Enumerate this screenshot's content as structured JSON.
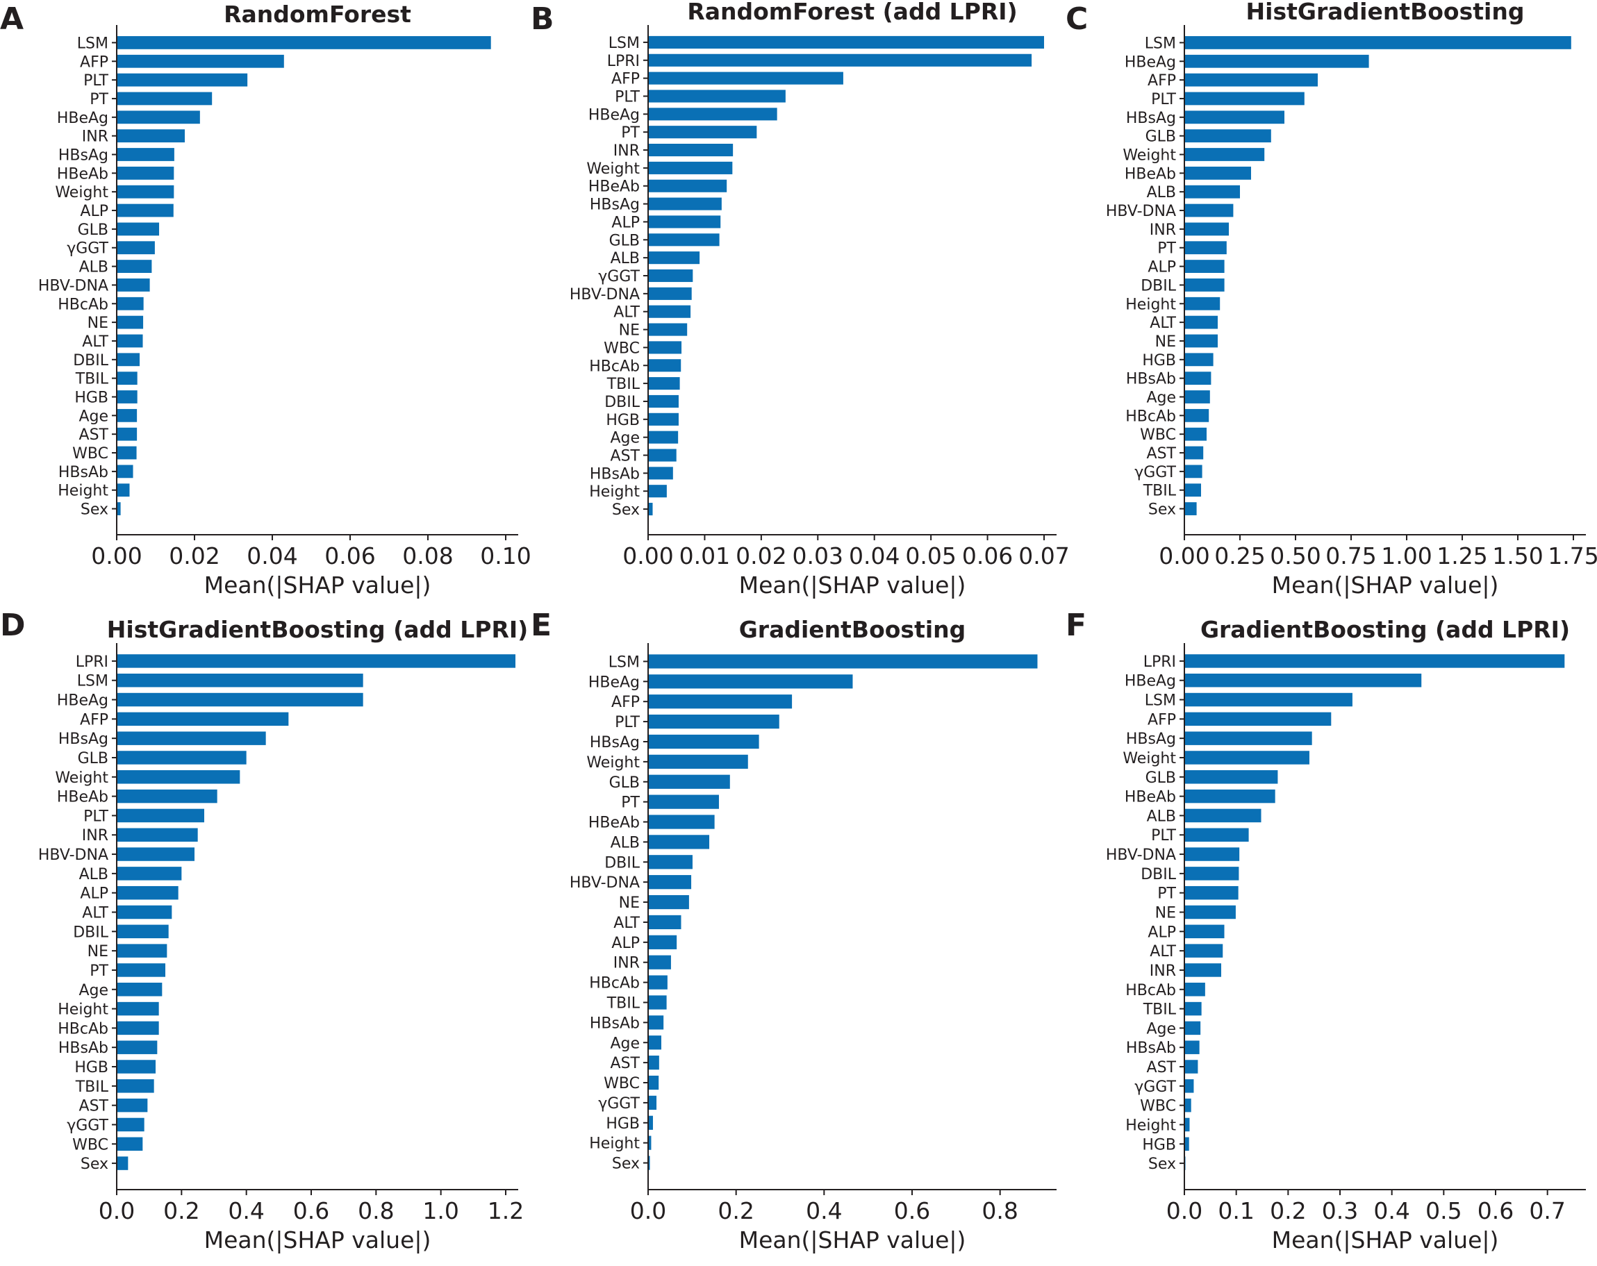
{
  "colors": {
    "bar": "#0a70b5",
    "axis": "#231f20"
  },
  "chart_data": [
    {
      "panel": "A",
      "type": "bar",
      "orientation": "horizontal",
      "title": "RandomForest",
      "xlabel": "Mean(|SHAP value|)",
      "xlim": [
        0,
        0.1
      ],
      "xticks": [
        "0.00",
        "0.02",
        "0.04",
        "0.06",
        "0.08",
        "0.10"
      ],
      "categories": [
        "LSM",
        "AFP",
        "PLT",
        "PT",
        "HBeAg",
        "INR",
        "HBsAg",
        "HBeAb",
        "Weight",
        "ALP",
        "GLB",
        "γGGT",
        "ALB",
        "HBV-DNA",
        "HBcAb",
        "NE",
        "ALT",
        "DBIL",
        "TBIL",
        "HGB",
        "Age",
        "AST",
        "WBC",
        "HBsAb",
        "Height",
        "Sex"
      ],
      "values": [
        0.0962,
        0.043,
        0.0336,
        0.0245,
        0.0214,
        0.0175,
        0.0148,
        0.0147,
        0.0147,
        0.0146,
        0.0109,
        0.0098,
        0.009,
        0.0085,
        0.0069,
        0.0068,
        0.0067,
        0.0059,
        0.0053,
        0.0053,
        0.0052,
        0.0052,
        0.0051,
        0.0042,
        0.0033,
        0.001
      ]
    },
    {
      "panel": "B",
      "type": "bar",
      "orientation": "horizontal",
      "title": "RandomForest (add LPRI)",
      "xlabel": "Mean(|SHAP value|)",
      "xlim": [
        0,
        0.07
      ],
      "xticks": [
        "0.00",
        "0.01",
        "0.02",
        "0.03",
        "0.04",
        "0.05",
        "0.06",
        "0.07"
      ],
      "categories": [
        "LSM",
        "LPRI",
        "AFP",
        "PLT",
        "HBeAg",
        "PT",
        "INR",
        "Weight",
        "HBeAb",
        "HBsAg",
        "ALP",
        "GLB",
        "ALB",
        "γGGT",
        "HBV-DNA",
        "ALT",
        "NE",
        "WBC",
        "HBcAb",
        "TBIL",
        "DBIL",
        "HGB",
        "Age",
        "AST",
        "HBsAb",
        "Height",
        "Sex"
      ],
      "values": [
        0.07,
        0.0678,
        0.0345,
        0.0243,
        0.0228,
        0.0192,
        0.015,
        0.0149,
        0.0139,
        0.013,
        0.0128,
        0.0126,
        0.0091,
        0.0079,
        0.0077,
        0.0075,
        0.0069,
        0.0059,
        0.0058,
        0.0056,
        0.0054,
        0.0054,
        0.0053,
        0.005,
        0.0044,
        0.0033,
        0.0008
      ]
    },
    {
      "panel": "C",
      "type": "bar",
      "orientation": "horizontal",
      "title": "HistGradientBoosting",
      "xlabel": "Mean(|SHAP value|)",
      "xlim": [
        0,
        1.75
      ],
      "xticks": [
        "0.00",
        "0.25",
        "0.50",
        "0.75",
        "1.00",
        "1.25",
        "1.50",
        "1.75"
      ],
      "categories": [
        "LSM",
        "HBeAg",
        "AFP",
        "PLT",
        "HBsAg",
        "GLB",
        "Weight",
        "HBeAb",
        "ALB",
        "HBV-DNA",
        "INR",
        "PT",
        "ALP",
        "DBIL",
        "Height",
        "ALT",
        "NE",
        "HGB",
        "HBsAb",
        "Age",
        "HBcAb",
        "WBC",
        "AST",
        "γGGT",
        "TBIL",
        "Sex"
      ],
      "values": [
        1.74,
        0.83,
        0.6,
        0.54,
        0.45,
        0.39,
        0.36,
        0.3,
        0.25,
        0.22,
        0.2,
        0.19,
        0.18,
        0.18,
        0.16,
        0.15,
        0.15,
        0.13,
        0.12,
        0.115,
        0.11,
        0.1,
        0.085,
        0.08,
        0.075,
        0.055
      ]
    },
    {
      "panel": "D",
      "type": "bar",
      "orientation": "horizontal",
      "title": "HistGradientBoosting (add LPRI)",
      "xlabel": "Mean(|SHAP value|)",
      "xlim": [
        0,
        1.2
      ],
      "xticks": [
        "0.0",
        "0.2",
        "0.4",
        "0.6",
        "0.8",
        "1.0",
        "1.2"
      ],
      "categories": [
        "LPRI",
        "LSM",
        "HBeAg",
        "AFP",
        "HBsAg",
        "GLB",
        "Weight",
        "HBeAb",
        "PLT",
        "INR",
        "HBV-DNA",
        "ALB",
        "ALP",
        "ALT",
        "DBIL",
        "NE",
        "PT",
        "Age",
        "Height",
        "HBcAb",
        "HBsAb",
        "HGB",
        "TBIL",
        "AST",
        "γGGT",
        "WBC",
        "Sex"
      ],
      "values": [
        1.23,
        0.76,
        0.76,
        0.53,
        0.46,
        0.4,
        0.38,
        0.31,
        0.27,
        0.25,
        0.24,
        0.2,
        0.19,
        0.17,
        0.16,
        0.155,
        0.15,
        0.14,
        0.13,
        0.13,
        0.125,
        0.12,
        0.115,
        0.095,
        0.085,
        0.08,
        0.035
      ]
    },
    {
      "panel": "E",
      "type": "bar",
      "orientation": "horizontal",
      "title": "GradientBoosting",
      "xlabel": "Mean(|SHAP value|)",
      "xlim": [
        0,
        0.9
      ],
      "xticks": [
        "0.0",
        "0.2",
        "0.4",
        "0.6",
        "0.8"
      ],
      "categories": [
        "LSM",
        "HBeAg",
        "AFP",
        "PLT",
        "HBsAg",
        "Weight",
        "GLB",
        "PT",
        "HBeAb",
        "ALB",
        "DBIL",
        "HBV-DNA",
        "NE",
        "ALT",
        "ALP",
        "INR",
        "HBcAb",
        "TBIL",
        "HBsAb",
        "Age",
        "AST",
        "WBC",
        "γGGT",
        "HGB",
        "Height",
        "Sex"
      ],
      "values": [
        0.885,
        0.465,
        0.327,
        0.298,
        0.252,
        0.227,
        0.186,
        0.161,
        0.151,
        0.139,
        0.101,
        0.098,
        0.093,
        0.075,
        0.065,
        0.052,
        0.044,
        0.042,
        0.035,
        0.03,
        0.025,
        0.024,
        0.019,
        0.011,
        0.007,
        0.004
      ]
    },
    {
      "panel": "F",
      "type": "bar",
      "orientation": "horizontal",
      "title": "GradientBoosting (add LPRI)",
      "xlabel": "Mean(|SHAP value|)",
      "xlim": [
        0,
        0.75
      ],
      "xticks": [
        "0.0",
        "0.1",
        "0.2",
        "0.3",
        "0.4",
        "0.5",
        "0.6",
        "0.7"
      ],
      "categories": [
        "LPRI",
        "HBeAg",
        "LSM",
        "AFP",
        "HBsAg",
        "Weight",
        "GLB",
        "HBeAb",
        "ALB",
        "PLT",
        "HBV-DNA",
        "DBIL",
        "PT",
        "NE",
        "ALP",
        "ALT",
        "INR",
        "HBcAb",
        "TBIL",
        "Age",
        "HBsAb",
        "AST",
        "γGGT",
        "WBC",
        "Height",
        "HGB",
        "Sex"
      ],
      "values": [
        0.733,
        0.457,
        0.324,
        0.283,
        0.246,
        0.241,
        0.18,
        0.175,
        0.148,
        0.124,
        0.106,
        0.105,
        0.104,
        0.099,
        0.077,
        0.074,
        0.071,
        0.04,
        0.033,
        0.031,
        0.029,
        0.026,
        0.018,
        0.013,
        0.01,
        0.009,
        0.002
      ]
    }
  ]
}
